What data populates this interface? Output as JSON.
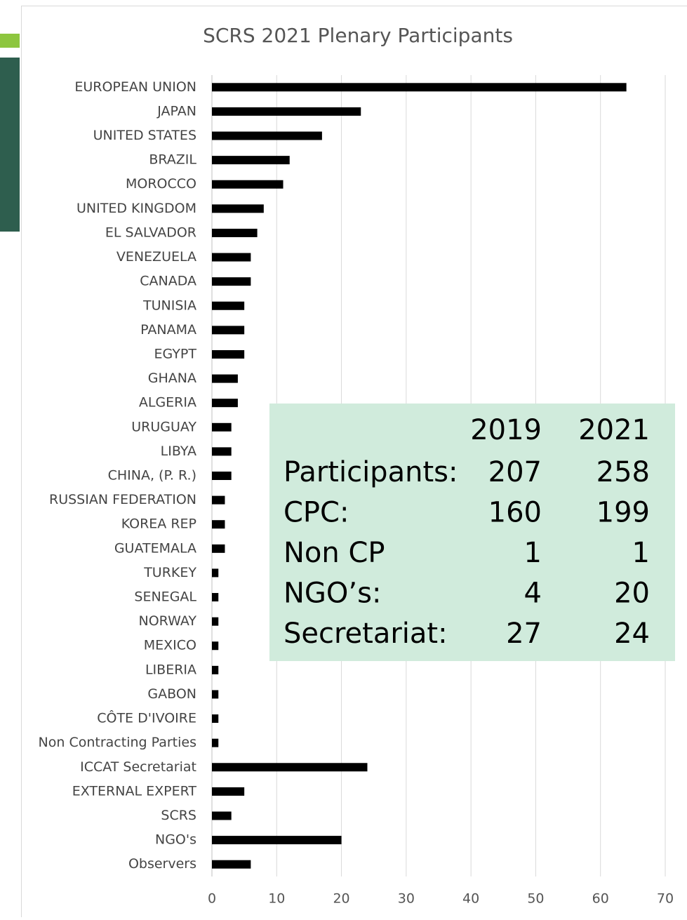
{
  "chart_data": {
    "type": "bar",
    "orientation": "horizontal",
    "title": "SCRS 2021 Plenary Participants",
    "categories": [
      "EUROPEAN UNION",
      "JAPAN",
      "UNITED STATES",
      "BRAZIL",
      "MOROCCO",
      "UNITED KINGDOM",
      "EL SALVADOR",
      "VENEZUELA",
      "CANADA",
      "TUNISIA",
      "PANAMA",
      "EGYPT",
      "GHANA",
      "ALGERIA",
      "URUGUAY",
      "LIBYA",
      "CHINA, (P. R.)",
      "RUSSIAN FEDERATION",
      "KOREA REP",
      "GUATEMALA",
      "TURKEY",
      "SENEGAL",
      "NORWAY",
      "MEXICO",
      "LIBERIA",
      "GABON",
      "CÔTE D'IVOIRE",
      "Non Contracting Parties",
      "ICCAT Secretariat",
      "EXTERNAL EXPERT",
      "SCRS",
      "NGO's",
      "Observers"
    ],
    "values": [
      64,
      23,
      17,
      12,
      11,
      8,
      7,
      6,
      6,
      5,
      5,
      5,
      4,
      4,
      3,
      3,
      3,
      2,
      2,
      2,
      1,
      1,
      1,
      1,
      1,
      1,
      1,
      1,
      24,
      5,
      3,
      20,
      6
    ],
    "color": "#000000",
    "xlim": [
      0,
      70
    ],
    "xticks": [
      0,
      10,
      20,
      30,
      40,
      50,
      60,
      70
    ],
    "grid": true
  },
  "table": {
    "columns": [
      "2019",
      "2021"
    ],
    "rows": [
      {
        "label": "Participants:",
        "values": [
          207,
          258
        ]
      },
      {
        "label": "CPC:",
        "values": [
          160,
          199
        ]
      },
      {
        "label": "Non CP",
        "values": [
          1,
          1
        ]
      },
      {
        "label": "NGO’s:",
        "values": [
          4,
          20
        ]
      },
      {
        "label": "Secretariat:",
        "values": [
          27,
          24
        ]
      }
    ]
  }
}
